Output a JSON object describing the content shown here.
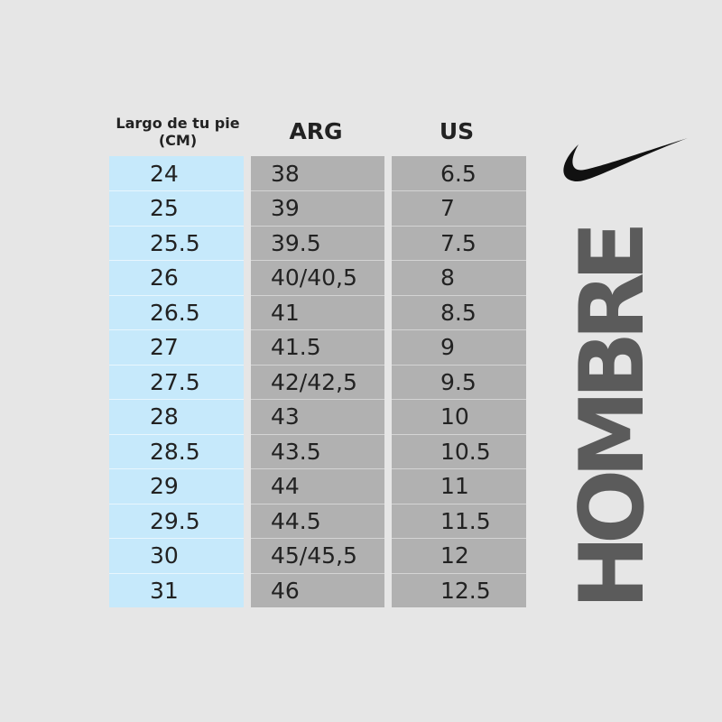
{
  "table": {
    "headers": [
      "Largo de tu pie (CM)",
      "ARG",
      "US"
    ],
    "rows": [
      [
        "24",
        "38",
        "6.5"
      ],
      [
        "25",
        "39",
        "7"
      ],
      [
        "25.5",
        "39.5",
        "7.5"
      ],
      [
        "26",
        "40/40,5",
        "8"
      ],
      [
        "26.5",
        "41",
        "8.5"
      ],
      [
        "27",
        "41.5",
        "9"
      ],
      [
        "27.5",
        "42/42,5",
        "9.5"
      ],
      [
        "28",
        "43",
        "10"
      ],
      [
        "28.5",
        "43.5",
        "10.5"
      ],
      [
        "29",
        "44",
        "11"
      ],
      [
        "29.5",
        "44.5",
        "11.5"
      ],
      [
        "30",
        "45/45,5",
        "12"
      ],
      [
        "31",
        "46",
        "12.5"
      ]
    ]
  },
  "side_label": "HOMBRE"
}
